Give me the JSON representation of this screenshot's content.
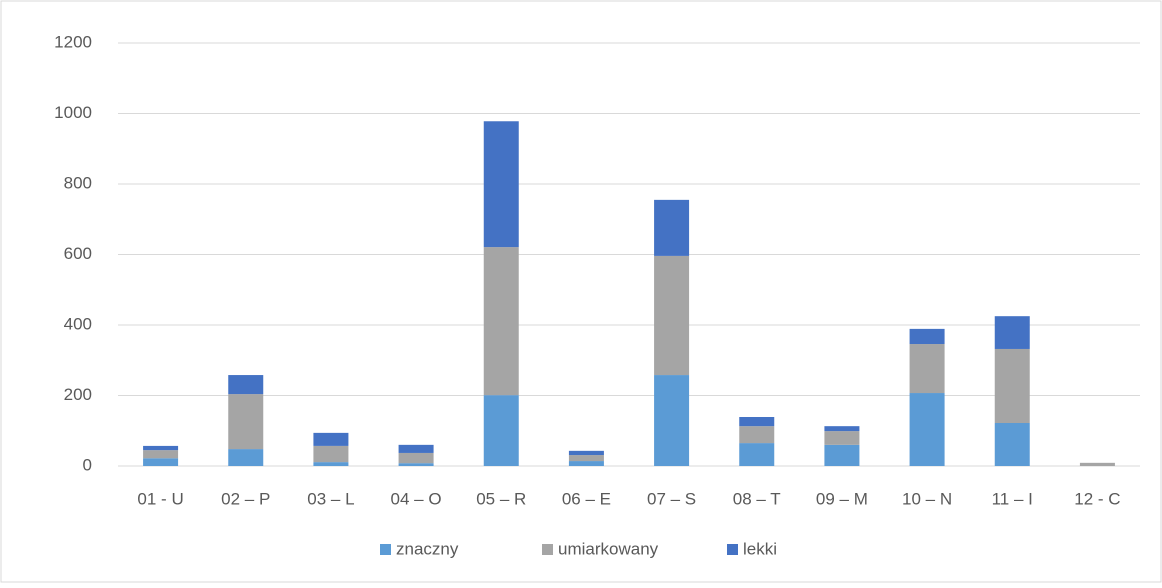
{
  "chart_data": {
    "type": "stacked_bar",
    "categories": [
      "01 - U",
      "02 – P",
      "03 – L",
      "04 – O",
      "05 – R",
      "06 – E",
      "07 – S",
      "08 – T",
      "09 – M",
      "10 – N",
      "11 – I",
      "12 - C"
    ],
    "series": [
      {
        "name": "znaczny",
        "color": "#5b9bd5",
        "values": [
          22,
          48,
          11,
          8,
          201,
          14,
          258,
          65,
          60,
          207,
          122,
          0
        ]
      },
      {
        "name": "umiarkowany",
        "color": "#a5a5a5",
        "values": [
          23,
          156,
          46,
          29,
          420,
          17,
          338,
          48,
          39,
          139,
          210,
          9
        ]
      },
      {
        "name": "lekki",
        "color": "#4472c4",
        "values": [
          12,
          54,
          37,
          23,
          357,
          12,
          159,
          26,
          14,
          43,
          93,
          0
        ]
      }
    ],
    "ylim": [
      0,
      1200
    ],
    "yticks": [
      0,
      200,
      400,
      600,
      800,
      1000,
      1200
    ],
    "grid": true,
    "legend": "bottom"
  }
}
